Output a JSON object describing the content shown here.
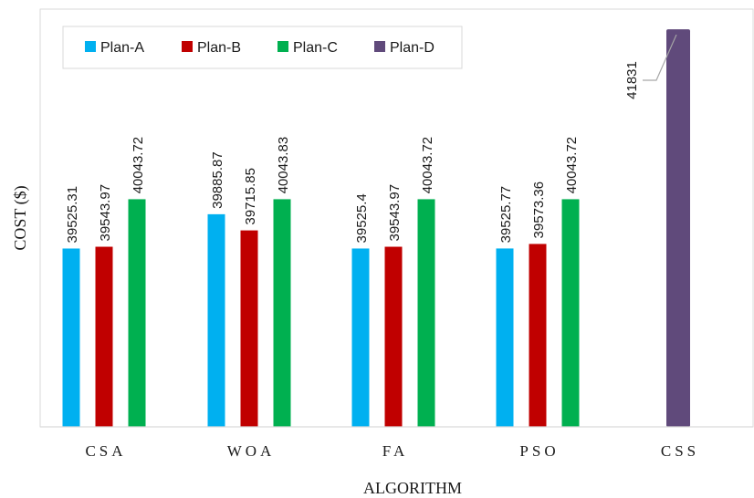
{
  "chart_data": {
    "type": "bar",
    "categories": [
      "CSA",
      "WOA",
      "FA",
      "PSO",
      "CSS"
    ],
    "series": [
      {
        "name": "Plan-A",
        "color": "#00b0f0",
        "values": [
          39525.31,
          39885.87,
          39525.4,
          39525.77,
          null
        ]
      },
      {
        "name": "Plan-B",
        "color": "#c00000",
        "values": [
          39543.97,
          39715.85,
          39543.97,
          39573.36,
          null
        ]
      },
      {
        "name": "Plan-C",
        "color": "#00b050",
        "values": [
          40043.72,
          40043.83,
          40043.72,
          40043.72,
          null
        ]
      },
      {
        "name": "Plan-D",
        "color": "#604a7b",
        "values": [
          null,
          null,
          null,
          null,
          41831
        ]
      }
    ],
    "data_labels": [
      [
        "39525.31",
        "39885.87",
        "39525.4",
        "39525.77",
        null
      ],
      [
        "39543.97",
        "39715.85",
        "39543.97",
        "39573.36",
        null
      ],
      [
        "40043.72",
        "40043.83",
        "40043.72",
        "40043.72",
        null
      ],
      [
        null,
        null,
        null,
        null,
        "41831"
      ]
    ],
    "xlabel": "ALGORITHM",
    "ylabel": "COST ($)",
    "ylim": [
      37650,
      41870
    ],
    "grid": false,
    "legend_position": "top-left"
  }
}
